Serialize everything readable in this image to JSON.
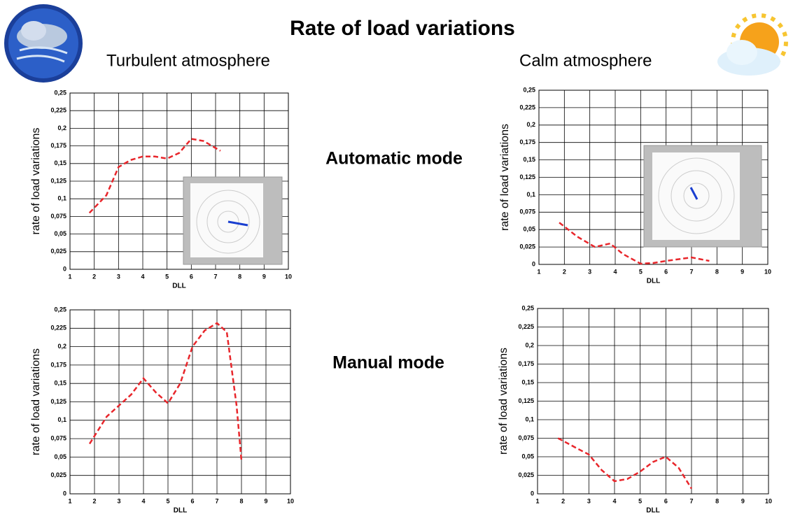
{
  "slide": {
    "title": "Rate of load variations",
    "columns": [
      "Turbulent atmosphere",
      "Calm atmosphere"
    ],
    "rows": [
      "Automatic mode",
      "Manual mode"
    ]
  },
  "chart_data": [
    {
      "type": "line",
      "x_label": "DLL",
      "y_label": "rate of load variations",
      "color": "#e8262b",
      "line_style": "dashed",
      "grid": true,
      "x": [
        1.8,
        2.5,
        3,
        3.5,
        4,
        4.5,
        5,
        5.5,
        6,
        6.5,
        7.2
      ],
      "values": [
        0.08,
        0.105,
        0.145,
        0.155,
        0.16,
        0.16,
        0.157,
        0.165,
        0.185,
        0.182,
        0.168
      ],
      "xlim": [
        1,
        10
      ],
      "xticks": [
        1,
        2,
        3,
        4,
        5,
        6,
        7,
        8,
        9,
        10
      ],
      "ylim": [
        0,
        0.25
      ],
      "yticks": [
        0,
        {
          "value": 0.025,
          "label": "0,025"
        },
        {
          "value": 0.05,
          "label": "0,05"
        },
        {
          "value": 0.075,
          "label": "0,075"
        },
        {
          "value": 0.1,
          "label": "0,1"
        },
        {
          "value": 0.125,
          "label": "0,125"
        },
        {
          "value": 0.15,
          "label": "0,15"
        },
        {
          "value": 0.175,
          "label": "0,175"
        },
        {
          "value": 0.2,
          "label": "0,2"
        },
        {
          "value": 0.225,
          "label": "0,225"
        },
        {
          "value": 0.25,
          "label": "0,25"
        }
      ]
    },
    {
      "type": "line",
      "x_label": "DLL",
      "y_label": "rate of load variations",
      "color": "#e8262b",
      "line_style": "dashed",
      "grid": true,
      "x": [
        1.8,
        2.5,
        3.2,
        3.8,
        4.3,
        5,
        5.5,
        6,
        7,
        7.7
      ],
      "values": [
        0.06,
        0.04,
        0.025,
        0.03,
        0.015,
        0.001,
        0.002,
        0.005,
        0.01,
        0.005
      ],
      "xlim": [
        1,
        10
      ],
      "xticks": [
        1,
        2,
        3,
        4,
        5,
        6,
        7,
        8,
        9,
        10
      ],
      "ylim": [
        0,
        0.25
      ],
      "yticks": [
        0,
        {
          "value": 0.025,
          "label": "0,025"
        },
        {
          "value": 0.05,
          "label": "0,05"
        },
        {
          "value": 0.075,
          "label": "0,075"
        },
        {
          "value": 0.1,
          "label": "0,1"
        },
        {
          "value": 0.125,
          "label": "0,125"
        },
        {
          "value": 0.15,
          "label": "0,15"
        },
        {
          "value": 0.175,
          "label": "0,175"
        },
        {
          "value": 0.2,
          "label": "0,2"
        },
        {
          "value": 0.225,
          "label": "0,225"
        },
        {
          "value": 0.25,
          "label": "0,25"
        }
      ]
    },
    {
      "type": "line",
      "x_label": "DLL",
      "y_label": "rate of load variations",
      "color": "#e8262b",
      "line_style": "dashed",
      "grid": true,
      "x": [
        1.8,
        2.5,
        3,
        3.5,
        4,
        4.5,
        5,
        5.5,
        6,
        6.5,
        7,
        7.4,
        7.8,
        8
      ],
      "values": [
        0.068,
        0.105,
        0.12,
        0.135,
        0.157,
        0.138,
        0.123,
        0.15,
        0.2,
        0.222,
        0.232,
        0.22,
        0.12,
        0.045
      ],
      "xlim": [
        1,
        10
      ],
      "xticks": [
        1,
        2,
        3,
        4,
        5,
        6,
        7,
        8,
        9,
        10
      ],
      "ylim": [
        0,
        0.25
      ],
      "yticks": [
        0,
        {
          "value": 0.025,
          "label": "0,025"
        },
        {
          "value": 0.05,
          "label": "0,05"
        },
        {
          "value": 0.075,
          "label": "0,075"
        },
        {
          "value": 0.1,
          "label": "0,1"
        },
        {
          "value": 0.125,
          "label": "0,125"
        },
        {
          "value": 0.15,
          "label": "0,15"
        },
        {
          "value": 0.175,
          "label": "0,175"
        },
        {
          "value": 0.2,
          "label": "0,2"
        },
        {
          "value": 0.225,
          "label": "0,225"
        },
        {
          "value": 0.25,
          "label": "0,25"
        }
      ]
    },
    {
      "type": "line",
      "x_label": "DLL",
      "y_label": "rate of load variations",
      "color": "#e8262b",
      "line_style": "dashed",
      "grid": true,
      "x": [
        1.8,
        2.5,
        3,
        3.5,
        4,
        4.5,
        5,
        5.5,
        6,
        6.5,
        7
      ],
      "values": [
        0.075,
        0.062,
        0.053,
        0.032,
        0.017,
        0.02,
        0.03,
        0.043,
        0.05,
        0.035,
        0.007
      ],
      "xlim": [
        1,
        10
      ],
      "xticks": [
        1,
        2,
        3,
        4,
        5,
        6,
        7,
        8,
        9,
        10
      ],
      "ylim": [
        0,
        0.25
      ],
      "yticks": [
        0,
        {
          "value": 0.025,
          "label": "0,025"
        },
        {
          "value": 0.05,
          "label": "0,05"
        },
        {
          "value": 0.075,
          "label": "0,075"
        },
        {
          "value": 0.1,
          "label": "0,1"
        },
        {
          "value": 0.125,
          "label": "0,125"
        },
        {
          "value": 0.15,
          "label": "0,15"
        },
        {
          "value": 0.175,
          "label": "0,175"
        },
        {
          "value": 0.2,
          "label": "0,2"
        },
        {
          "value": 0.225,
          "label": "0,225"
        },
        {
          "value": 0.25,
          "label": "0,25"
        }
      ]
    }
  ]
}
